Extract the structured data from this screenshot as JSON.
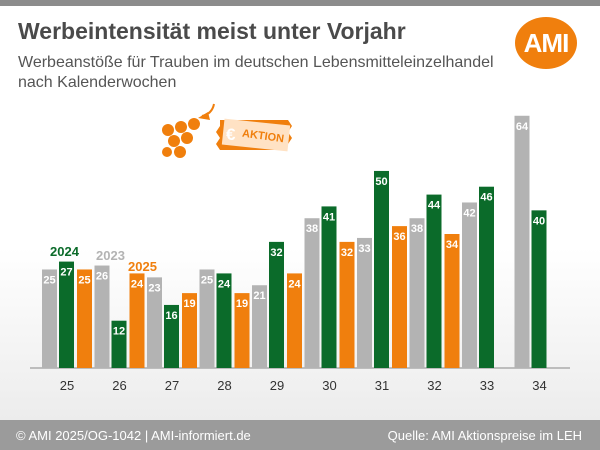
{
  "header": {
    "title": "Werbeintensität meist unter Vorjahr",
    "subtitle": "Werbeanstöße für Trauben im deutschen Lebensmitteleinzelhandel nach Kalenderwochen",
    "logo_text": "AMI"
  },
  "promo": {
    "symbol": "€",
    "label": "AKTION"
  },
  "footer": {
    "left": "© AMI 2025/OG-1042 | AMI-informiert.de",
    "right": "Quelle: AMI Aktionspreise im LEH"
  },
  "colors": {
    "2023": "#b3b3b3",
    "2024": "#0b6b2a",
    "2025": "#f07f0d",
    "brand": "#f07f0d"
  },
  "chart_data": {
    "type": "bar",
    "categories": [
      "25",
      "26",
      "27",
      "28",
      "29",
      "30",
      "31",
      "32",
      "33",
      "34"
    ],
    "series": [
      {
        "name": "2023",
        "values": [
          25,
          26,
          23,
          25,
          21,
          38,
          33,
          38,
          42,
          64
        ]
      },
      {
        "name": "2024",
        "values": [
          27,
          12,
          16,
          24,
          32,
          41,
          50,
          44,
          46,
          40
        ]
      },
      {
        "name": "2025",
        "values": [
          25,
          24,
          19,
          19,
          24,
          32,
          36,
          34,
          null,
          null
        ]
      }
    ],
    "title": "Werbeintensität meist unter Vorjahr",
    "xlabel": "",
    "ylabel": "",
    "ylim": [
      0,
      68
    ],
    "grid": false,
    "legend": "inline-top-left"
  }
}
